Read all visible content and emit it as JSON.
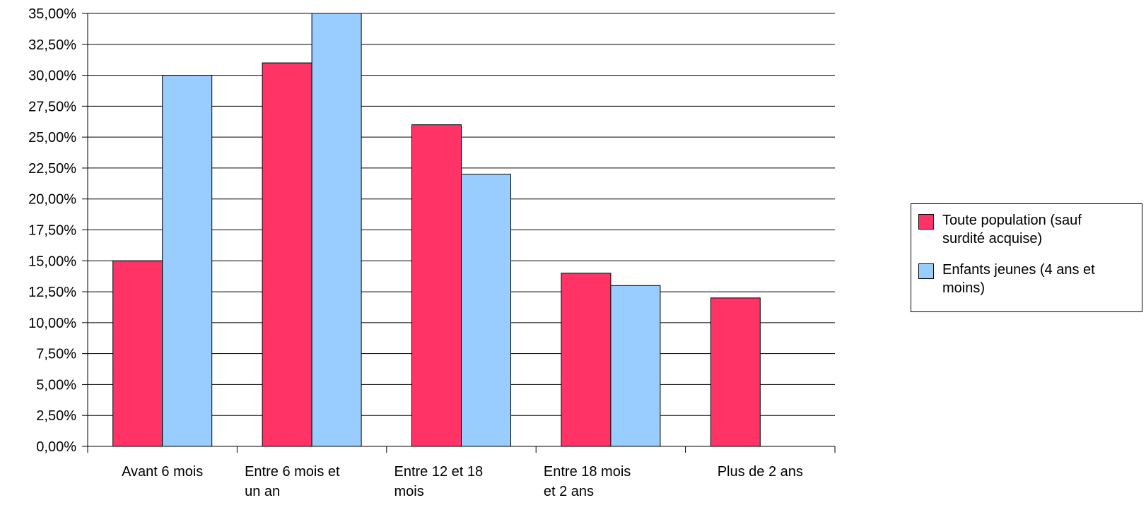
{
  "chart_data": {
    "type": "bar",
    "categories": [
      [
        "Avant 6 mois"
      ],
      [
        "Entre 6 mois et",
        "un an"
      ],
      [
        "Entre 12 et 18",
        "mois"
      ],
      [
        "Entre 18 mois",
        "et 2 ans"
      ],
      [
        "Plus de 2 ans"
      ]
    ],
    "series": [
      {
        "name": "Toute population (sauf surdité acquise)",
        "color": "#ff3366",
        "values": [
          15,
          31,
          26,
          14,
          12
        ]
      },
      {
        "name": "Enfants jeunes (4 ans et moins)",
        "color": "#99ccff",
        "values": [
          30,
          35,
          22,
          13,
          0
        ]
      }
    ],
    "ylim": [
      0,
      35
    ],
    "yticks": [
      "0,00%",
      "2,50%",
      "5,00%",
      "7,50%",
      "10,00%",
      "12,50%",
      "15,00%",
      "17,50%",
      "20,00%",
      "22,50%",
      "25,00%",
      "27,50%",
      "30,00%",
      "32,50%",
      "35,00%"
    ],
    "grid": true,
    "legend_position": "right"
  },
  "legend": {
    "items": [
      {
        "label_lines": [
          "Toute population (sauf",
          "surdité acquise)"
        ]
      },
      {
        "label_lines": [
          "Enfants jeunes (4 ans et",
          "moins)"
        ]
      }
    ]
  }
}
